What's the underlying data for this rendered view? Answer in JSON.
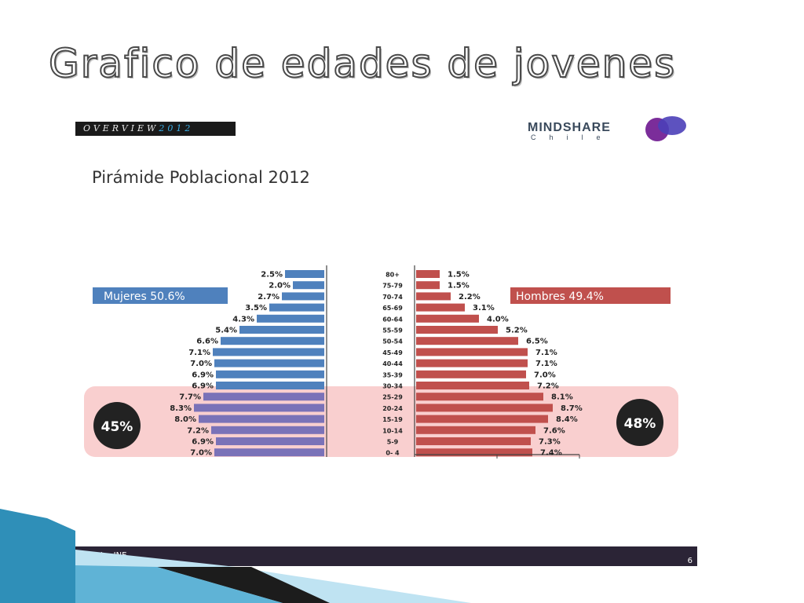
{
  "slide": {
    "title": "Grafico de edades de jovenes"
  },
  "header": {
    "badge_text": "OVERVIEW",
    "badge_year": "2012",
    "logo_name": "MINDSHARE",
    "logo_sub": "Chile"
  },
  "footer": {
    "source": "Fuente: INE",
    "page": "6"
  },
  "colors": {
    "mujeres": "#4f81bd",
    "mujeres_young": "#7a72b8",
    "hombres": "#c0504d",
    "highlight": "#f9cfcf",
    "bubble": "#222222"
  },
  "chart_data": {
    "type": "bar",
    "title": "Pirámide Poblacional 2012",
    "categories": [
      "80+",
      "75-79",
      "70-74",
      "65-69",
      "60-64",
      "55-59",
      "50-54",
      "45-49",
      "40-44",
      "35-39",
      "30-34",
      "25-29",
      "20-24",
      "15-19",
      "10-14",
      "5-9",
      "0- 4"
    ],
    "series": [
      {
        "name": "Mujeres 50.6%",
        "values": [
          2.5,
          2.0,
          2.7,
          3.5,
          4.3,
          5.4,
          6.6,
          7.1,
          7.0,
          6.9,
          6.9,
          7.7,
          8.3,
          8.0,
          7.2,
          6.9,
          7.0
        ]
      },
      {
        "name": "Hombres 49.4%",
        "values": [
          1.5,
          1.5,
          2.2,
          3.1,
          4.0,
          5.2,
          6.5,
          7.1,
          7.1,
          7.0,
          7.2,
          8.1,
          8.7,
          8.4,
          7.6,
          7.3,
          7.4
        ]
      }
    ],
    "highlight_groups": [
      "25-29",
      "20-24",
      "15-19",
      "10-14",
      "5-9",
      "0- 4"
    ],
    "highlight_left": "45%",
    "highlight_right": "48%"
  }
}
